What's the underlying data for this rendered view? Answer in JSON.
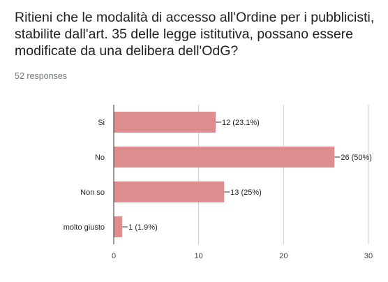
{
  "question_title": "Ritieni che le modalità di accesso all'Ordine per i pubblicisti, stabilite dall'art. 35 delle legge istitutiva, possano essere modificate da una delibera dell'OdG?",
  "responses_text": "52 responses",
  "colors": {
    "bar": "#de8e8e",
    "grid": "#cccccc",
    "axis": "#333333",
    "label": "#222222",
    "tick": "#444444"
  },
  "chart_data": {
    "type": "bar",
    "orientation": "horizontal",
    "title": "",
    "xlabel": "",
    "ylabel": "",
    "categories": [
      "Si",
      "No",
      "Non so",
      "molto giusto"
    ],
    "values": [
      12,
      26,
      13,
      1
    ],
    "data_labels": [
      "12 (23.1%)",
      "26 (50%)",
      "13 (25%)",
      "1 (1.9%)"
    ],
    "xlim": [
      0,
      30
    ],
    "xticks": [
      0,
      10,
      20,
      30
    ],
    "grid": true,
    "legend": "none"
  }
}
